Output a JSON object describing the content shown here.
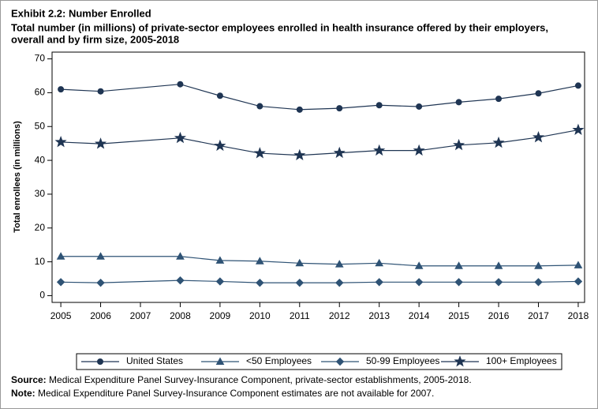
{
  "chart_data": {
    "type": "line",
    "title": "Exhibit 2.2: Number Enrolled",
    "subtitle": [
      "Total number (in millions) of private-sector employees enrolled in health insurance offered by their employers,",
      "overall and by firm size, 2005-2018"
    ],
    "y_label": "Total enrollees (in millions)",
    "x": [
      2005,
      2006,
      2008,
      2009,
      2010,
      2011,
      2012,
      2013,
      2014,
      2015,
      2016,
      2017,
      2018
    ],
    "xlim": [
      2004.78,
      2018.16
    ],
    "xticks": [
      2005,
      2006,
      2007,
      2008,
      2009,
      2010,
      2011,
      2012,
      2013,
      2014,
      2015,
      2016,
      2017,
      2018
    ],
    "ylim": [
      -2,
      72
    ],
    "yticks": [
      0,
      10,
      20,
      30,
      40,
      50,
      60,
      70
    ],
    "grid": false,
    "legend": "bottom",
    "series": [
      {
        "name": "United States",
        "color": "#1f3553",
        "marker": "circle",
        "values": [
          61.0,
          60.4,
          62.5,
          59.1,
          56.0,
          55.0,
          55.4,
          56.3,
          55.9,
          57.2,
          58.2,
          59.8,
          62.1
        ]
      },
      {
        "name": "<50 Employees",
        "color": "#2f5375",
        "marker": "triangle",
        "values": [
          11.6,
          11.6,
          11.6,
          10.4,
          10.2,
          9.6,
          9.3,
          9.6,
          8.8,
          8.8,
          8.8,
          8.8,
          9.0
        ]
      },
      {
        "name": "50-99 Employees",
        "color": "#2f5375",
        "marker": "diamond",
        "values": [
          4.0,
          3.8,
          4.5,
          4.2,
          3.8,
          3.8,
          3.8,
          4.0,
          4.0,
          4.0,
          4.0,
          4.0,
          4.2
        ]
      },
      {
        "name": "100+ Employees",
        "color": "#1f3553",
        "marker": "star",
        "values": [
          45.4,
          44.9,
          46.6,
          44.3,
          42.1,
          41.5,
          42.2,
          42.9,
          42.9,
          44.5,
          45.2,
          46.8,
          49.0
        ]
      }
    ],
    "source_label": "Source:",
    "source": "Medical Expenditure Panel Survey-Insurance Component, private-sector establishments, 2005-2018.",
    "note_label": "Note:",
    "note": "Medical Expenditure Panel Survey-Insurance Component estimates are not available for 2007."
  }
}
